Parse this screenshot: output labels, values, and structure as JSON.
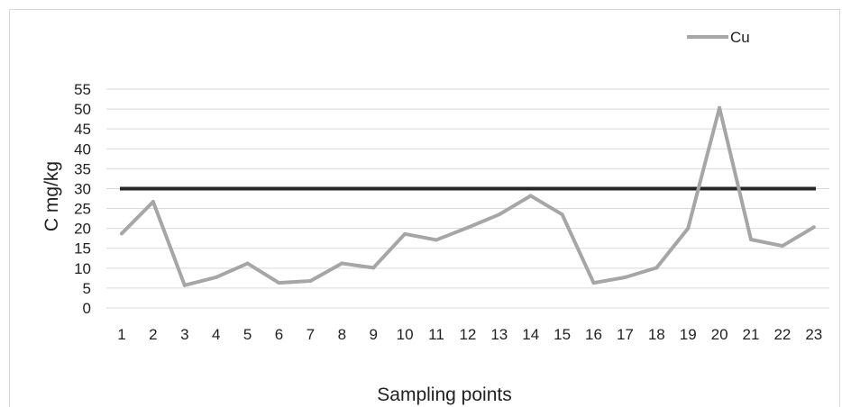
{
  "chart_data": {
    "type": "line",
    "xlabel": "Sampling points",
    "ylabel": "C mg/kg",
    "ylim": [
      0,
      55
    ],
    "yticks": [
      0,
      5,
      10,
      15,
      20,
      25,
      30,
      35,
      40,
      45,
      50,
      55
    ],
    "grid": "horizontal",
    "legend": "top-right",
    "categories": [
      "1",
      "2",
      "3",
      "4",
      "5",
      "6",
      "7",
      "8",
      "9",
      "10",
      "11",
      "12",
      "13",
      "14",
      "15",
      "16",
      "17",
      "18",
      "19",
      "20",
      "21",
      "22",
      "23"
    ],
    "series": [
      {
        "name": "Cu",
        "color": "#a6a6a6",
        "values": [
          18.7,
          26.7,
          5.7,
          7.7,
          11.2,
          6.3,
          6.8,
          11.2,
          10.1,
          18.6,
          17.1,
          20.2,
          23.5,
          28.2,
          23.5,
          6.3,
          7.7,
          10.1,
          20.0,
          50.3,
          17.2,
          15.6,
          20.3
        ]
      }
    ],
    "reference_line": {
      "value": 30,
      "color": "#262626"
    }
  }
}
